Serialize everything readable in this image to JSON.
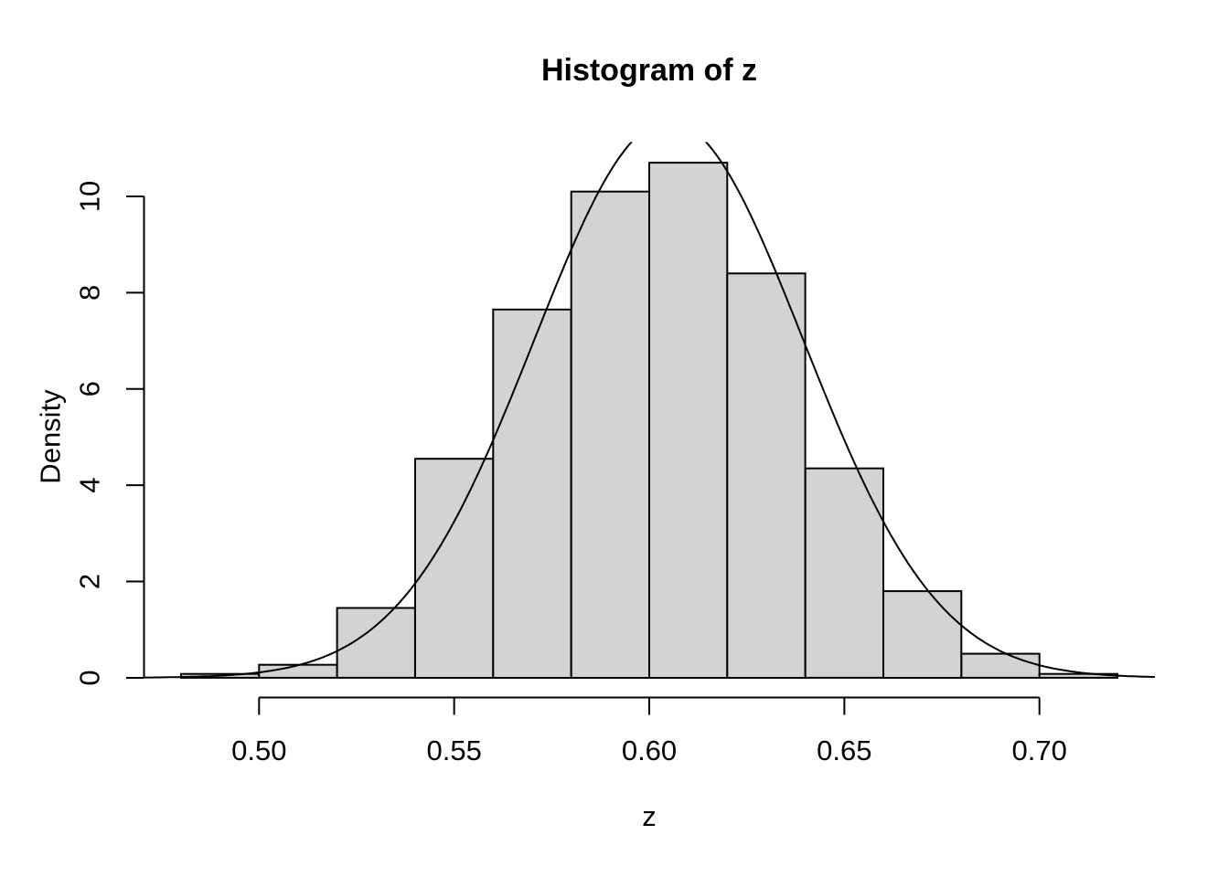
{
  "chart_data": {
    "type": "bar",
    "subtype": "histogram-with-density-curve",
    "title": "Histogram of z",
    "xlabel": "z",
    "ylabel": "Density",
    "bin_edges": [
      0.48,
      0.5,
      0.52,
      0.54,
      0.56,
      0.58,
      0.6,
      0.62,
      0.64,
      0.66,
      0.68,
      0.7,
      0.72
    ],
    "bin_densities": [
      0.08,
      0.27,
      1.45,
      4.55,
      7.65,
      10.1,
      10.7,
      8.4,
      4.35,
      1.8,
      0.5,
      0.08
    ],
    "x_tick_values": [
      0.5,
      0.55,
      0.6,
      0.65,
      0.7
    ],
    "x_tick_labels": [
      "0.50",
      "0.55",
      "0.60",
      "0.65",
      "0.70"
    ],
    "y_tick_values": [
      0,
      2,
      4,
      6,
      8,
      10
    ],
    "y_tick_labels": [
      "0",
      "2",
      "4",
      "6",
      "8",
      "10"
    ],
    "xlim": [
      0.4704,
      0.7296
    ],
    "ylim": [
      -0.428,
      11.128
    ],
    "grid": false,
    "legend": null,
    "overlay_curve": {
      "type": "normal-density",
      "mean": 0.605,
      "sd": 0.0345
    },
    "colors": {
      "bar_fill": "#d3d3d3",
      "bar_stroke": "#000000",
      "curve": "#000000",
      "axis": "#000000",
      "text": "#000000",
      "background": "#ffffff"
    }
  }
}
